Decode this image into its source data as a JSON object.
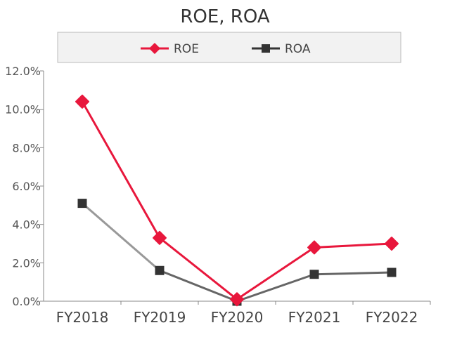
{
  "chart_data": {
    "type": "line",
    "title": "ROE, ROA",
    "categories": [
      "FY2018",
      "FY2019",
      "FY2020",
      "FY2021",
      "FY2022"
    ],
    "series": [
      {
        "name": "ROE",
        "values": [
          10.4,
          3.3,
          0.1,
          2.8,
          3.0
        ],
        "color": "#e8173c",
        "marker": "diamond"
      },
      {
        "name": "ROA",
        "values": [
          5.1,
          1.6,
          0.0,
          1.4,
          1.5
        ],
        "color": "#333333",
        "marker": "square"
      }
    ],
    "y_ticks": [
      "0.0%",
      "2.0%",
      "4.0%",
      "6.0%",
      "8.0%",
      "10.0%",
      "12.0%"
    ],
    "ylim": [
      0,
      12
    ],
    "legend_position": "top",
    "grid": false
  }
}
